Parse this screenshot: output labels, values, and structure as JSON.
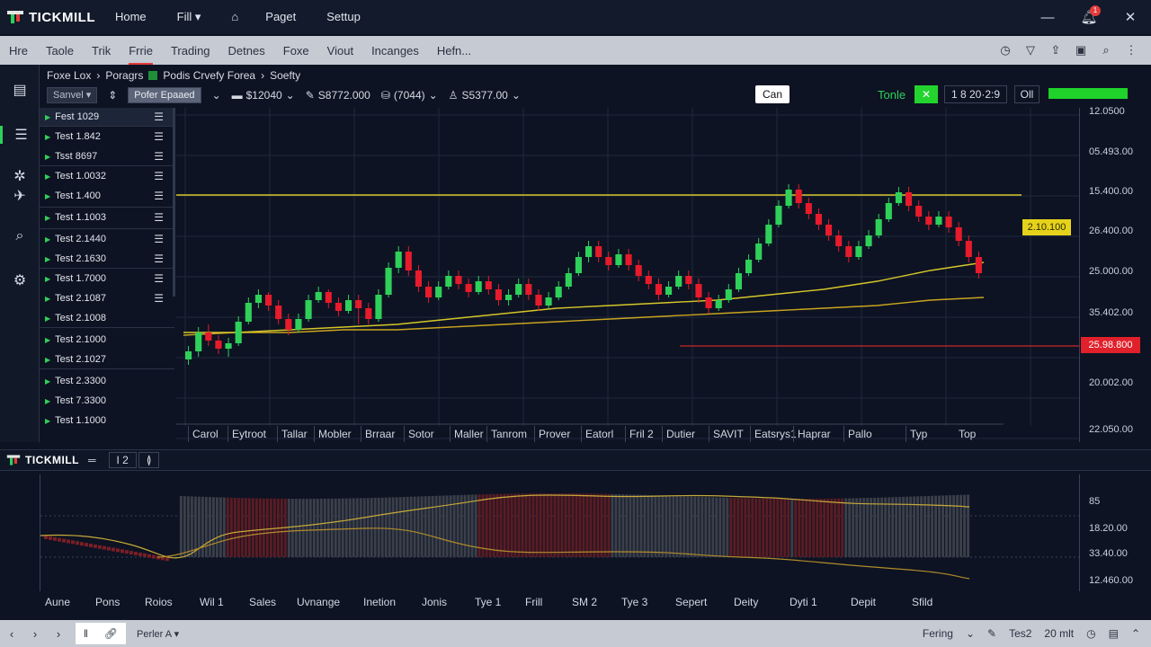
{
  "app": {
    "logo_text": "TICKMILL",
    "nav": [
      "Home",
      "Fill ▾",
      "Paget",
      "Settup"
    ],
    "nav_icon": "bank-icon",
    "notification_count": "1"
  },
  "menubar": {
    "items": [
      "Hre",
      "Taole",
      "Trik",
      "Frrie",
      "Trading",
      "Detnes",
      "Foxe",
      "Viout",
      "Incanges",
      "Hefn..."
    ],
    "active_index": 3
  },
  "breadcrumb": {
    "part1": "Foxe Lox",
    "part2": "Poragrs",
    "part3": "Podis Crvefy Forea",
    "part4": "Soefty"
  },
  "controls": {
    "select1": "Sanvel",
    "select2": "Pofer Epaaed",
    "stat1": "$12040",
    "stat2": "S8772.000",
    "stat3": "(7044)",
    "stat4": "S5377.00"
  },
  "toolbar_right": {
    "can_label": "Can",
    "tone_label": "Tonle",
    "tone_btn": "✕",
    "tone_value": "1 8 20·2:9",
    "tone_sub": "Oll",
    "accent": "#23d42f"
  },
  "watchlist": [
    {
      "label": "Fest 1029"
    },
    {
      "label": "Test 1.842"
    },
    {
      "label": "Tsst 8697"
    },
    {
      "label": "Test 1.0032"
    },
    {
      "label": "Test 1.400"
    },
    {
      "label": "Test 1.1003"
    },
    {
      "label": "Test 2.1440"
    },
    {
      "label": "Test 2.1630"
    },
    {
      "label": "Test 1.7000"
    },
    {
      "label": "Test 2.1087"
    },
    {
      "label": "Test 2.1008"
    },
    {
      "label": "Test 2.1000"
    },
    {
      "label": "Test 2.1027"
    },
    {
      "label": "Test 2.3300"
    },
    {
      "label": "Test 7.3300"
    },
    {
      "label": "Test 1.1000"
    }
  ],
  "price_axis": [
    "12.0500",
    "05.493.00",
    "15.400.00",
    "26.400.00",
    "25.000.00",
    "35.402.00",
    "25.980.00",
    "20.002.00",
    "22.050.00"
  ],
  "price_tags": {
    "yellow": "2.10.100",
    "red": "25.98.800"
  },
  "chart_labels": [
    "Carol",
    "Eytroot",
    "Tallar",
    "Mobler",
    "Brraar",
    "Sotor",
    "Maller",
    "Tanrom",
    "Prover",
    "Eatorl",
    "Fril 2",
    "Dutier",
    "SAVIT",
    "Eatsrys1",
    "Haprar",
    "Pallo",
    "Typ",
    "Top"
  ],
  "chart_data": {
    "type": "candlestick",
    "colors": {
      "up": "#2fd05a",
      "down": "#e61b2b",
      "ma1": "#d6c62a",
      "ma2": "#c9a420",
      "level": "#d6c62a",
      "level2": "#c8262a"
    },
    "candles": [
      [
        0.2,
        0.23,
        0.18,
        0.25
      ],
      [
        0.23,
        0.3,
        0.21,
        0.32
      ],
      [
        0.3,
        0.27,
        0.25,
        0.33
      ],
      [
        0.27,
        0.24,
        0.22,
        0.29
      ],
      [
        0.24,
        0.26,
        0.21,
        0.28
      ],
      [
        0.26,
        0.34,
        0.25,
        0.36
      ],
      [
        0.34,
        0.41,
        0.33,
        0.43
      ],
      [
        0.41,
        0.44,
        0.39,
        0.46
      ],
      [
        0.44,
        0.4,
        0.38,
        0.45
      ],
      [
        0.4,
        0.35,
        0.33,
        0.42
      ],
      [
        0.35,
        0.31,
        0.29,
        0.37
      ],
      [
        0.31,
        0.35,
        0.3,
        0.37
      ],
      [
        0.35,
        0.42,
        0.34,
        0.44
      ],
      [
        0.42,
        0.45,
        0.41,
        0.47
      ],
      [
        0.45,
        0.41,
        0.39,
        0.46
      ],
      [
        0.41,
        0.38,
        0.36,
        0.43
      ],
      [
        0.38,
        0.42,
        0.37,
        0.44
      ],
      [
        0.42,
        0.39,
        0.33,
        0.44
      ],
      [
        0.39,
        0.35,
        0.33,
        0.41
      ],
      [
        0.35,
        0.44,
        0.34,
        0.46
      ],
      [
        0.44,
        0.54,
        0.43,
        0.56
      ],
      [
        0.54,
        0.6,
        0.52,
        0.62
      ],
      [
        0.6,
        0.53,
        0.51,
        0.62
      ],
      [
        0.53,
        0.47,
        0.45,
        0.55
      ],
      [
        0.47,
        0.43,
        0.41,
        0.49
      ],
      [
        0.43,
        0.47,
        0.42,
        0.49
      ],
      [
        0.47,
        0.51,
        0.46,
        0.53
      ],
      [
        0.51,
        0.48,
        0.46,
        0.53
      ],
      [
        0.48,
        0.45,
        0.43,
        0.5
      ],
      [
        0.45,
        0.49,
        0.44,
        0.51
      ],
      [
        0.49,
        0.46,
        0.44,
        0.51
      ],
      [
        0.46,
        0.42,
        0.4,
        0.48
      ],
      [
        0.42,
        0.44,
        0.4,
        0.46
      ],
      [
        0.44,
        0.48,
        0.43,
        0.5
      ],
      [
        0.48,
        0.44,
        0.42,
        0.5
      ],
      [
        0.44,
        0.4,
        0.38,
        0.46
      ],
      [
        0.4,
        0.43,
        0.39,
        0.45
      ],
      [
        0.43,
        0.47,
        0.42,
        0.49
      ],
      [
        0.47,
        0.52,
        0.46,
        0.54
      ],
      [
        0.52,
        0.58,
        0.51,
        0.6
      ],
      [
        0.58,
        0.62,
        0.56,
        0.64
      ],
      [
        0.62,
        0.58,
        0.56,
        0.64
      ],
      [
        0.58,
        0.55,
        0.53,
        0.6
      ],
      [
        0.55,
        0.59,
        0.54,
        0.61
      ],
      [
        0.59,
        0.55,
        0.53,
        0.61
      ],
      [
        0.55,
        0.51,
        0.49,
        0.57
      ],
      [
        0.51,
        0.48,
        0.46,
        0.53
      ],
      [
        0.48,
        0.44,
        0.42,
        0.5
      ],
      [
        0.44,
        0.47,
        0.43,
        0.49
      ],
      [
        0.47,
        0.51,
        0.46,
        0.53
      ],
      [
        0.51,
        0.48,
        0.46,
        0.53
      ],
      [
        0.48,
        0.43,
        0.41,
        0.5
      ],
      [
        0.43,
        0.39,
        0.37,
        0.45
      ],
      [
        0.39,
        0.42,
        0.38,
        0.44
      ],
      [
        0.42,
        0.46,
        0.41,
        0.48
      ],
      [
        0.46,
        0.52,
        0.45,
        0.54
      ],
      [
        0.52,
        0.57,
        0.51,
        0.59
      ],
      [
        0.57,
        0.63,
        0.56,
        0.65
      ],
      [
        0.63,
        0.7,
        0.62,
        0.72
      ],
      [
        0.7,
        0.77,
        0.69,
        0.79
      ],
      [
        0.77,
        0.83,
        0.76,
        0.85
      ],
      [
        0.83,
        0.78,
        0.76,
        0.85
      ],
      [
        0.78,
        0.74,
        0.72,
        0.8
      ],
      [
        0.74,
        0.7,
        0.68,
        0.76
      ],
      [
        0.7,
        0.66,
        0.64,
        0.72
      ],
      [
        0.66,
        0.62,
        0.6,
        0.68
      ],
      [
        0.62,
        0.58,
        0.56,
        0.64
      ],
      [
        0.58,
        0.62,
        0.57,
        0.64
      ],
      [
        0.62,
        0.66,
        0.61,
        0.68
      ],
      [
        0.66,
        0.72,
        0.65,
        0.74
      ],
      [
        0.72,
        0.78,
        0.71,
        0.8
      ],
      [
        0.78,
        0.82,
        0.77,
        0.84
      ],
      [
        0.82,
        0.77,
        0.75,
        0.84
      ],
      [
        0.77,
        0.73,
        0.71,
        0.79
      ],
      [
        0.73,
        0.7,
        0.68,
        0.75
      ],
      [
        0.7,
        0.73,
        0.69,
        0.75
      ],
      [
        0.73,
        0.69,
        0.67,
        0.75
      ],
      [
        0.69,
        0.64,
        0.62,
        0.71
      ],
      [
        0.64,
        0.58,
        0.56,
        0.66
      ],
      [
        0.58,
        0.52,
        0.5,
        0.6
      ]
    ],
    "levels": {
      "upper": 0.79,
      "lower": 0.38
    },
    "ma1": [
      0.3,
      0.3,
      0.31,
      0.32,
      0.33,
      0.35,
      0.37,
      0.39,
      0.4,
      0.41,
      0.42,
      0.44,
      0.46,
      0.49,
      0.53,
      0.56
    ],
    "ma2": [
      0.29,
      0.3,
      0.3,
      0.31,
      0.31,
      0.32,
      0.33,
      0.34,
      0.35,
      0.36,
      0.37,
      0.38,
      0.39,
      0.4,
      0.42,
      0.43
    ]
  },
  "sub_toolbar": {
    "logo_text": "TICKMILL",
    "box1": "I  2",
    "box2": "≬"
  },
  "indicator": {
    "axis": [
      "85",
      "18.20.00",
      "33.40.00",
      "12.460.00"
    ],
    "labels": [
      "Aune",
      "Pons",
      "Roios",
      "Wil 1",
      "Sales",
      "Uvnange",
      "Inetion",
      "Jonis",
      "Tye 1",
      "Frill",
      "SM 2",
      "Tye 3",
      "Sepert",
      "Deity",
      "Dyti 1",
      "Depit",
      "Sfild"
    ]
  },
  "bottombar": {
    "left_label": "Perler A",
    "r1": "Fering",
    "r2": "Tes2",
    "r3": "20 mlt"
  }
}
